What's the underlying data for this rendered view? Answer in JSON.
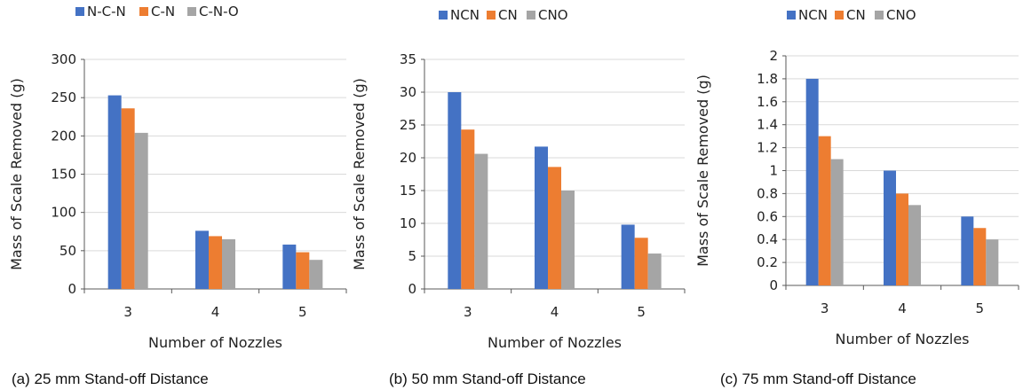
{
  "colors": {
    "ncn": "#4472C4",
    "cn": "#ED7D31",
    "cno": "#A5A5A5",
    "grid": "#D9D9D9",
    "axis": "#595959"
  },
  "chart_data": [
    {
      "type": "bar",
      "categories": [
        "3",
        "4",
        "5"
      ],
      "series": [
        {
          "name": "N-C-N",
          "values": [
            253,
            76,
            58
          ]
        },
        {
          "name": "C-N",
          "values": [
            236,
            69,
            48
          ]
        },
        {
          "name": "C-N-O",
          "values": [
            204,
            65,
            38
          ]
        }
      ],
      "ylim": [
        0,
        300
      ],
      "yticks": [
        "0",
        "50",
        "100",
        "150",
        "200",
        "250",
        "300"
      ],
      "xlabel": "Number of Nozzles",
      "ylabel": "Mass of Scale Removed (g)",
      "caption": "(a) 25 mm Stand-off Distance",
      "legend_position": "top"
    },
    {
      "type": "bar",
      "categories": [
        "3",
        "4",
        "5"
      ],
      "series": [
        {
          "name": "NCN",
          "values": [
            30,
            21.7,
            9.8
          ]
        },
        {
          "name": "CN",
          "values": [
            24.3,
            18.6,
            7.8
          ]
        },
        {
          "name": "CNO",
          "values": [
            20.6,
            15,
            5.4
          ]
        }
      ],
      "ylim": [
        0,
        35
      ],
      "yticks": [
        "0",
        "5",
        "10",
        "15",
        "20",
        "25",
        "30",
        "35"
      ],
      "xlabel": "Number of Nozzles",
      "ylabel": "Mass of Scale Removed (g)",
      "caption": "(b) 50 mm Stand-off Distance",
      "legend_position": "top"
    },
    {
      "type": "bar",
      "categories": [
        "3",
        "4",
        "5"
      ],
      "series": [
        {
          "name": "NCN",
          "values": [
            1.8,
            1.0,
            0.6
          ]
        },
        {
          "name": "CN",
          "values": [
            1.3,
            0.8,
            0.5
          ]
        },
        {
          "name": "CNO",
          "values": [
            1.1,
            0.7,
            0.4
          ]
        }
      ],
      "ylim": [
        0,
        2
      ],
      "yticks": [
        "0",
        "0.2",
        "0.4",
        "0.6",
        "0.8",
        "1",
        "1.2",
        "1.4",
        "1.6",
        "1.8",
        "2"
      ],
      "xlabel": "Number of Nozzles",
      "ylabel": "Mass of Scale Removed (g)",
      "caption": "(c)  75 mm Stand-off Distance",
      "legend_position": "top"
    }
  ]
}
